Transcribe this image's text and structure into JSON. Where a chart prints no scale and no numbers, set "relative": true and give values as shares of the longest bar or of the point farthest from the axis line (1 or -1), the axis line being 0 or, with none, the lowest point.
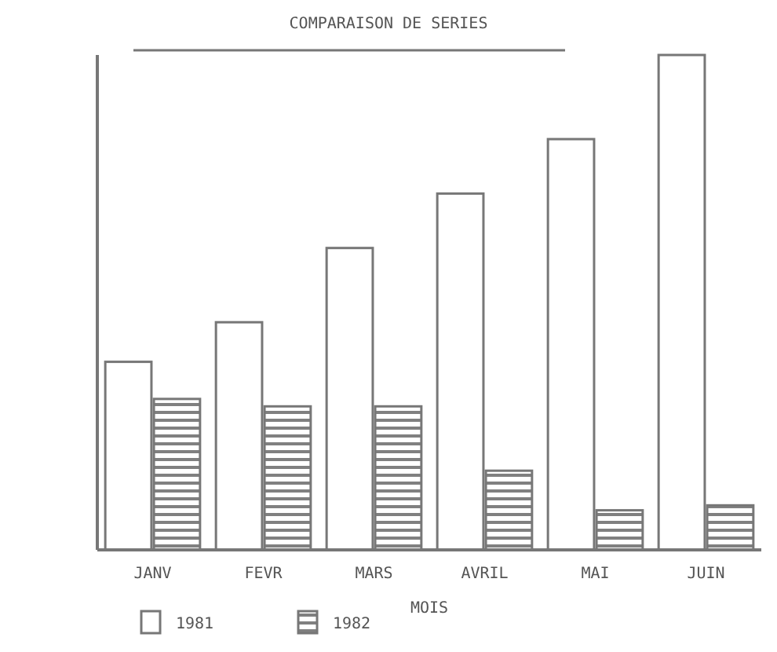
{
  "chart_data": {
    "type": "bar",
    "title": "COMPARAISON DE SERIES",
    "xlabel": "MOIS",
    "relative": true,
    "legend": "bottom left",
    "categories": [
      "JANV",
      "FEVR",
      "MARS",
      "AVRIL",
      "MAI",
      "JUIN"
    ],
    "series": [
      {
        "name": "1981",
        "color": "#ffffff",
        "values": [
          0.38,
          0.46,
          0.61,
          0.72,
          0.83,
          1.0
        ]
      },
      {
        "name": "1982",
        "color": "#808080",
        "values": [
          0.305,
          0.29,
          0.29,
          0.16,
          0.08,
          0.09
        ]
      }
    ]
  }
}
